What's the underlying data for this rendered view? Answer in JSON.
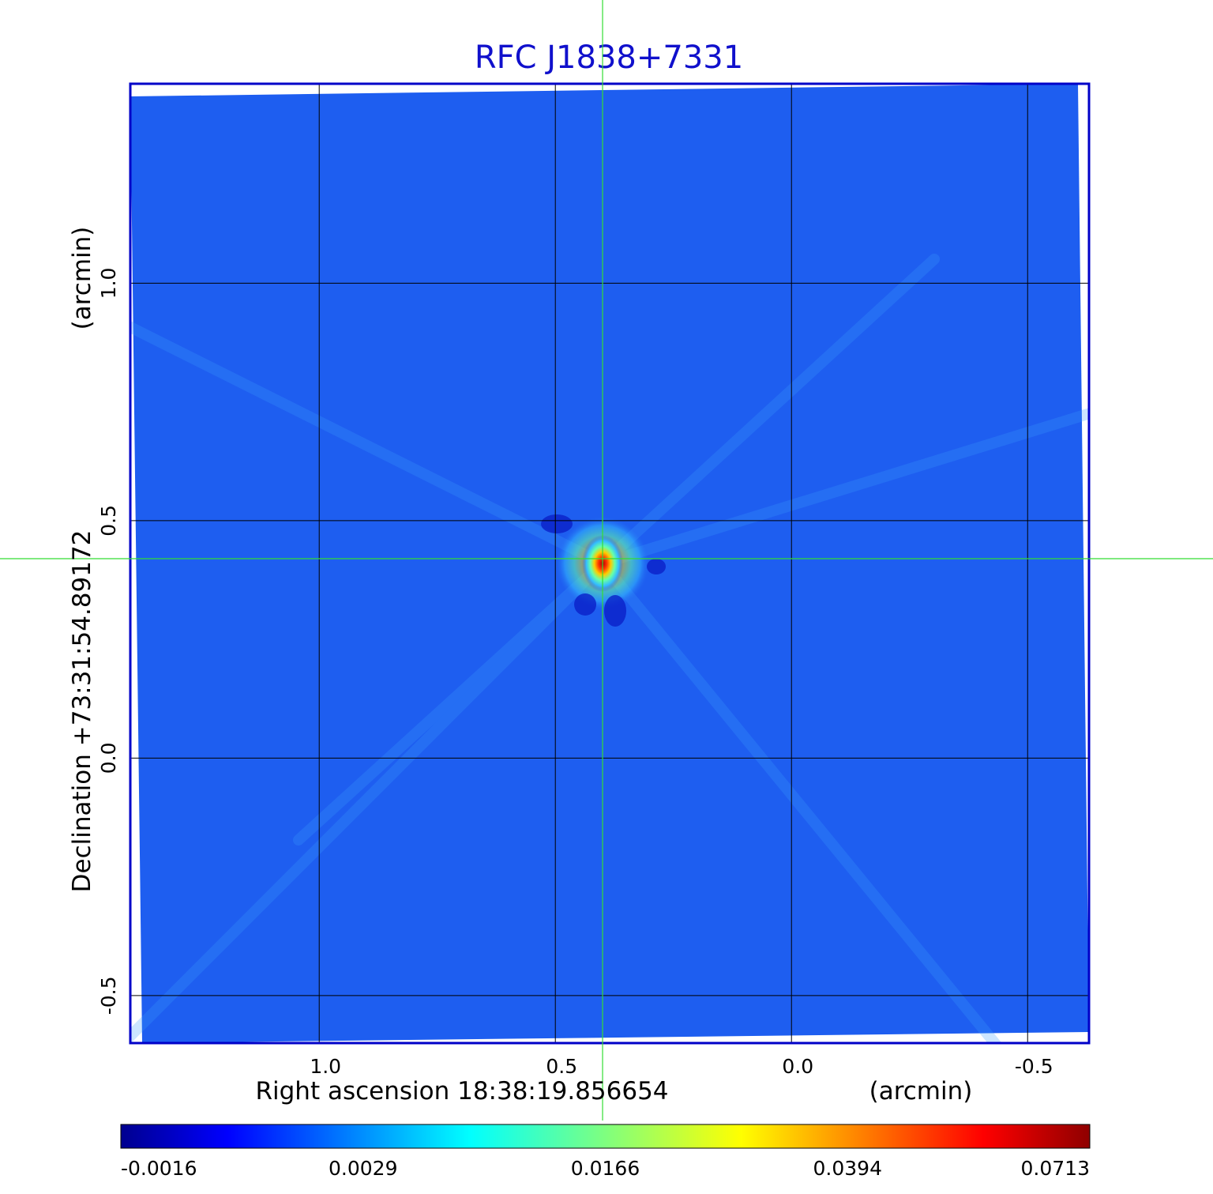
{
  "chart_data": {
    "type": "heatmap",
    "title": "RFC J1838+7331",
    "xlabel": "Right ascension  18:38:19.856654",
    "xunit": "(arcmin)",
    "ylabel": "Declination  +73:31:54.89172",
    "yunit": "(arcmin)",
    "xlim": [
      1.4,
      -0.63
    ],
    "ylim": [
      -0.6,
      1.42
    ],
    "x_reversed": true,
    "x_ticks": [
      1.0,
      0.5,
      0.0,
      -0.5
    ],
    "x_tick_labels": [
      "1.0",
      "0.5",
      "0.0",
      "-0.5"
    ],
    "y_ticks": [
      1.0,
      0.5,
      0.0,
      -0.5
    ],
    "y_tick_labels": [
      "1.0",
      "0.5",
      "0.0",
      "-0.5"
    ],
    "grid": true,
    "crosshair": {
      "x": 0.4,
      "y": 0.42
    },
    "source": {
      "x": 0.4,
      "y": 0.41,
      "peak": 0.0713
    },
    "colorbar": {
      "colormap": "jet",
      "ticks": [
        -0.0016,
        0.0029,
        0.0166,
        0.0394,
        0.0713
      ],
      "tick_labels": [
        "-0.0016",
        "0.0029",
        "0.0166",
        "0.0394",
        "0.0713"
      ]
    },
    "colors": {
      "title": "#1010cc",
      "frame": "#0000c8",
      "crosshair": "#33dd33",
      "grid": "#000000",
      "background_map": "#1e5ef0"
    }
  }
}
